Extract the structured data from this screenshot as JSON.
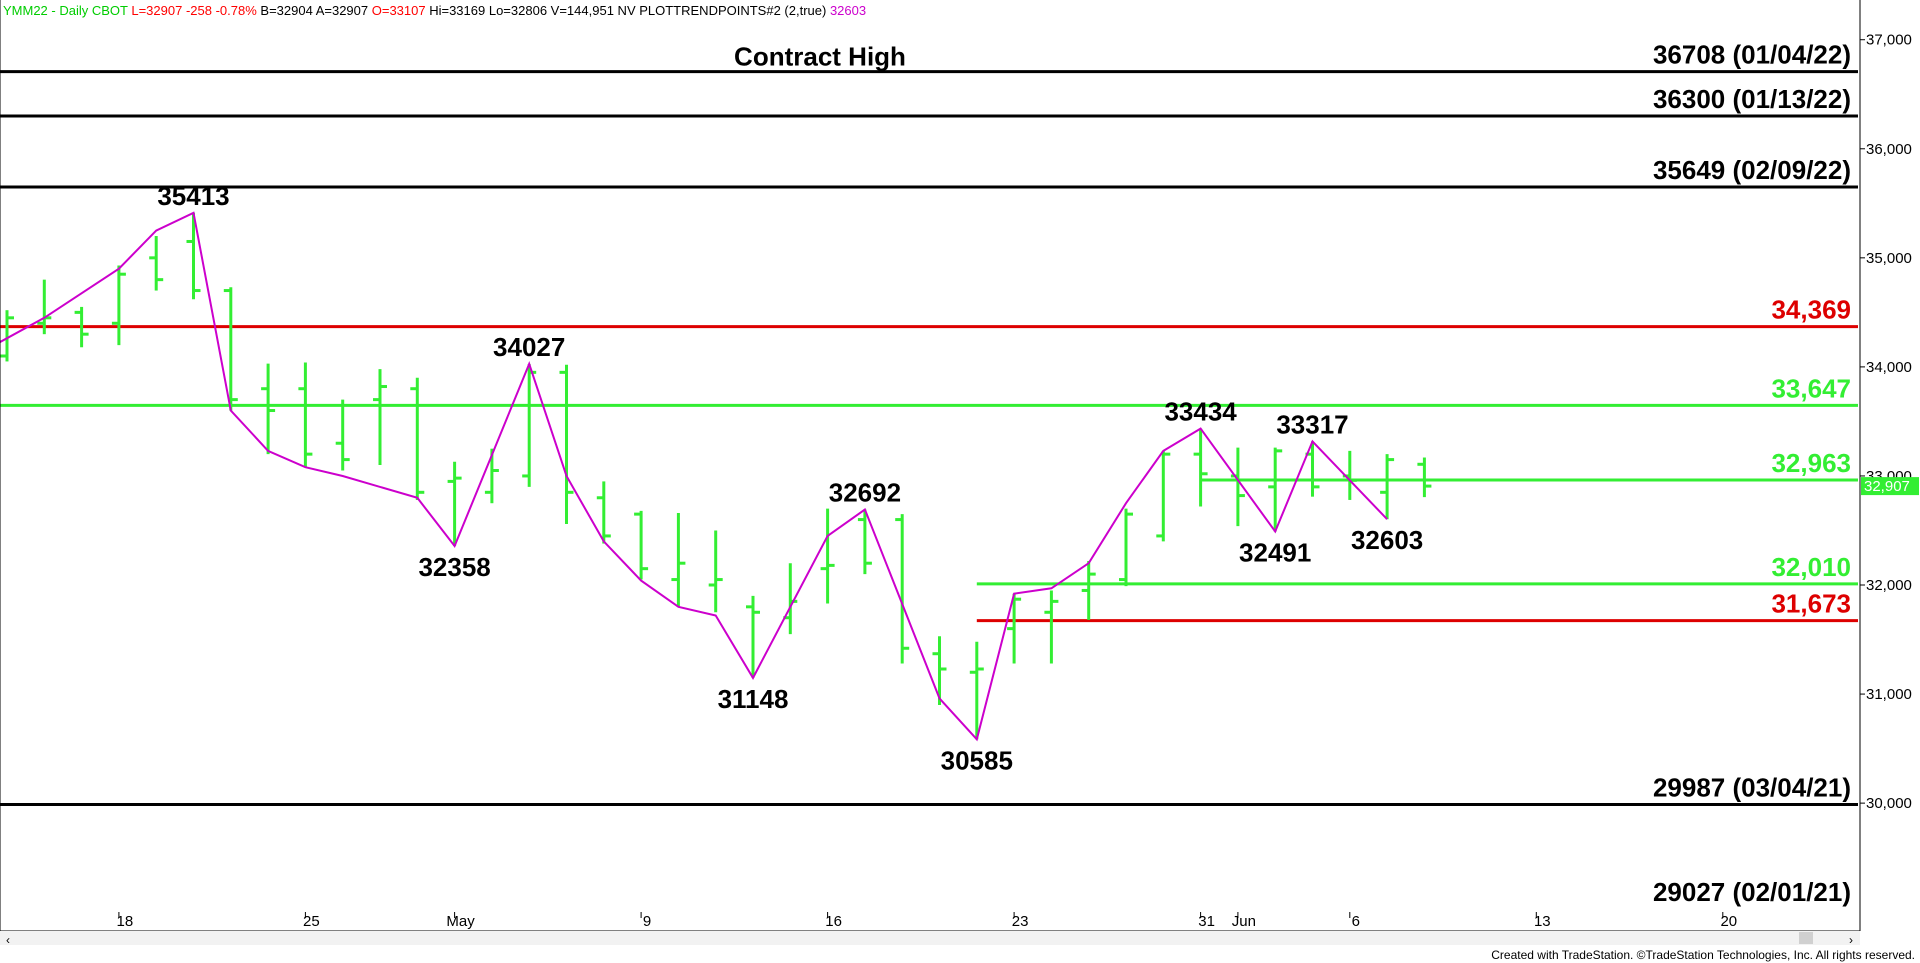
{
  "header": {
    "parts": [
      {
        "text": "YMM22 - Daily  CBOT",
        "color": "#00cc00"
      },
      {
        "text": "L=32907",
        "color": "#ff0000"
      },
      {
        "text": "-258",
        "color": "#ff0000"
      },
      {
        "text": "-0.78%",
        "color": "#ff0000"
      },
      {
        "text": "B=32904",
        "color": "#000000"
      },
      {
        "text": "A=32907",
        "color": "#000000"
      },
      {
        "text": "O=33107",
        "color": "#ff0000"
      },
      {
        "text": "Hi=33169",
        "color": "#000000"
      },
      {
        "text": "Lo=32806",
        "color": "#000000"
      },
      {
        "text": "V=144,951",
        "color": "#000000"
      },
      {
        "text": "NV",
        "color": "#000000"
      },
      {
        "text": "PLOTTRENDPOINTS#2 (2,true)",
        "color": "#000000"
      },
      {
        "text": "32603",
        "color": "#cc00cc"
      }
    ]
  },
  "footer": {
    "credit": "Created with TradeStation. ©TradeStation Technologies, Inc. All rights reserved.",
    "scroll_left": "‹",
    "scroll_right": "›"
  },
  "colors": {
    "bars": "#33ee33",
    "trend": "#cc00cc",
    "black_level": "#000000",
    "red_level": "#dd0000",
    "green_level": "#33ee33",
    "last_price_bg": "#33ee33"
  },
  "chart_data": {
    "type": "bar",
    "subtype": "ohlc-daily",
    "ylim": [
      28800,
      37300
    ],
    "y_ticks": [
      30000,
      31000,
      32000,
      33000,
      34000,
      35000,
      36000,
      37000
    ],
    "y_tick_labels": [
      "30,000",
      "31,000",
      "32,000",
      "33,000",
      "34,000",
      "35,000",
      "36,000",
      "37,000"
    ],
    "x_ticks": [
      {
        "i": 3,
        "label": "18"
      },
      {
        "i": 8,
        "label": "25"
      },
      {
        "i": 12,
        "label": "May"
      },
      {
        "i": 17,
        "label": "9"
      },
      {
        "i": 22,
        "label": "16"
      },
      {
        "i": 27,
        "label": "23"
      },
      {
        "i": 32,
        "label": "31"
      },
      {
        "i": 33,
        "label": "Jun"
      },
      {
        "i": 36,
        "label": "6"
      },
      {
        "i": 41,
        "label": "13"
      },
      {
        "i": 46,
        "label": "20"
      }
    ],
    "bars": [
      {
        "o": 34100,
        "h": 34520,
        "l": 34050,
        "c": 34450
      },
      {
        "o": 34400,
        "h": 34800,
        "l": 34300,
        "c": 34450
      },
      {
        "o": 34500,
        "h": 34550,
        "l": 34180,
        "c": 34300
      },
      {
        "o": 34400,
        "h": 34930,
        "l": 34200,
        "c": 34850
      },
      {
        "o": 35000,
        "h": 35200,
        "l": 34700,
        "c": 34800
      },
      {
        "o": 35150,
        "h": 35413,
        "l": 34620,
        "c": 34700
      },
      {
        "o": 34700,
        "h": 34730,
        "l": 33600,
        "c": 33700
      },
      {
        "o": 33800,
        "h": 34030,
        "l": 33200,
        "c": 33600
      },
      {
        "o": 33800,
        "h": 34040,
        "l": 33080,
        "c": 33200
      },
      {
        "o": 33300,
        "h": 33700,
        "l": 33050,
        "c": 33150
      },
      {
        "o": 33700,
        "h": 33980,
        "l": 33100,
        "c": 33820
      },
      {
        "o": 33800,
        "h": 33900,
        "l": 32780,
        "c": 32850
      },
      {
        "o": 32950,
        "h": 33130,
        "l": 32358,
        "c": 32980
      },
      {
        "o": 32850,
        "h": 33250,
        "l": 32750,
        "c": 33050
      },
      {
        "o": 33000,
        "h": 34027,
        "l": 32900,
        "c": 33950
      },
      {
        "o": 33950,
        "h": 34020,
        "l": 32560,
        "c": 32850
      },
      {
        "o": 32800,
        "h": 32950,
        "l": 32380,
        "c": 32450
      },
      {
        "o": 32650,
        "h": 32680,
        "l": 32050,
        "c": 32150
      },
      {
        "o": 32050,
        "h": 32660,
        "l": 31800,
        "c": 32200
      },
      {
        "o": 32000,
        "h": 32500,
        "l": 31750,
        "c": 32050
      },
      {
        "o": 31800,
        "h": 31900,
        "l": 31148,
        "c": 31750
      },
      {
        "o": 31700,
        "h": 32200,
        "l": 31550,
        "c": 31850
      },
      {
        "o": 32150,
        "h": 32700,
        "l": 31830,
        "c": 32180
      },
      {
        "o": 32600,
        "h": 32692,
        "l": 32100,
        "c": 32200
      },
      {
        "o": 32600,
        "h": 32650,
        "l": 31280,
        "c": 31420
      },
      {
        "o": 31370,
        "h": 31530,
        "l": 30900,
        "c": 31230
      },
      {
        "o": 31200,
        "h": 31480,
        "l": 30585,
        "c": 31230
      },
      {
        "o": 31600,
        "h": 31920,
        "l": 31280,
        "c": 31870
      },
      {
        "o": 31750,
        "h": 31950,
        "l": 31280,
        "c": 31850
      },
      {
        "o": 31950,
        "h": 32220,
        "l": 31680,
        "c": 32100
      },
      {
        "o": 32050,
        "h": 32700,
        "l": 31990,
        "c": 32650
      },
      {
        "o": 32450,
        "h": 33230,
        "l": 32400,
        "c": 33200
      },
      {
        "o": 33200,
        "h": 33434,
        "l": 32720,
        "c": 33020
      },
      {
        "o": 33000,
        "h": 33260,
        "l": 32540,
        "c": 32820
      },
      {
        "o": 32900,
        "h": 33260,
        "l": 32491,
        "c": 33230
      },
      {
        "o": 33200,
        "h": 33317,
        "l": 32810,
        "c": 32900
      },
      {
        "o": 33000,
        "h": 33230,
        "l": 32780,
        "c": 32960
      },
      {
        "o": 32850,
        "h": 33200,
        "l": 32603,
        "c": 33150
      },
      {
        "o": 33107,
        "h": 33169,
        "l": 32806,
        "c": 32907
      }
    ],
    "trend_points": [
      {
        "i": -0.5,
        "v": 34170
      },
      {
        "i": 1,
        "v": 34450
      },
      {
        "i": 3,
        "v": 34900
      },
      {
        "i": 4,
        "v": 35250
      },
      {
        "i": 5,
        "v": 35413
      },
      {
        "i": 6,
        "v": 33600
      },
      {
        "i": 7,
        "v": 33230
      },
      {
        "i": 8,
        "v": 33080
      },
      {
        "i": 9,
        "v": 33000
      },
      {
        "i": 11,
        "v": 32800
      },
      {
        "i": 12,
        "v": 32358
      },
      {
        "i": 14,
        "v": 34027
      },
      {
        "i": 15,
        "v": 33000
      },
      {
        "i": 16,
        "v": 32400
      },
      {
        "i": 17,
        "v": 32040
      },
      {
        "i": 18,
        "v": 31800
      },
      {
        "i": 19,
        "v": 31720
      },
      {
        "i": 20,
        "v": 31148
      },
      {
        "i": 22,
        "v": 32450
      },
      {
        "i": 23,
        "v": 32692
      },
      {
        "i": 25,
        "v": 30960
      },
      {
        "i": 26,
        "v": 30585
      },
      {
        "i": 27,
        "v": 31920
      },
      {
        "i": 28,
        "v": 31970
      },
      {
        "i": 29,
        "v": 32200
      },
      {
        "i": 30,
        "v": 32750
      },
      {
        "i": 31,
        "v": 33230
      },
      {
        "i": 32,
        "v": 33434
      },
      {
        "i": 34,
        "v": 32491
      },
      {
        "i": 35,
        "v": 33317
      },
      {
        "i": 36,
        "v": 32960
      },
      {
        "i": 37,
        "v": 32603
      }
    ],
    "pivot_labels": [
      {
        "i": 5,
        "v": 35413,
        "text": "35413",
        "pos": "above"
      },
      {
        "i": 12,
        "v": 32358,
        "text": "32358",
        "pos": "below"
      },
      {
        "i": 14,
        "v": 34027,
        "text": "34027",
        "pos": "above"
      },
      {
        "i": 20,
        "v": 31148,
        "text": "31148",
        "pos": "below"
      },
      {
        "i": 23,
        "v": 32692,
        "text": "32692",
        "pos": "above"
      },
      {
        "i": 26,
        "v": 30585,
        "text": "30585",
        "pos": "below"
      },
      {
        "i": 32,
        "v": 33434,
        "text": "33434",
        "pos": "above"
      },
      {
        "i": 34,
        "v": 32491,
        "text": "32491",
        "pos": "below"
      },
      {
        "i": 35,
        "v": 33317,
        "text": "33317",
        "pos": "above"
      },
      {
        "i": 37,
        "v": 32603,
        "text": "32603",
        "pos": "below"
      }
    ],
    "levels": [
      {
        "v": 36708,
        "label": "36708 (01/04/22)",
        "color": "black",
        "from_i": null
      },
      {
        "v": 36300,
        "label": "36300 (01/13/22)",
        "color": "black",
        "from_i": null
      },
      {
        "v": 35649,
        "label": "35649 (02/09/22)",
        "color": "black",
        "from_i": null
      },
      {
        "v": 34369,
        "label": "34,369",
        "color": "red",
        "from_i": null
      },
      {
        "v": 33647,
        "label": "33,647",
        "color": "green",
        "from_i": null
      },
      {
        "v": 32963,
        "label": "32,963",
        "color": "green",
        "from_i": 32
      },
      {
        "v": 32010,
        "label": "32,010",
        "color": "green",
        "from_i": 26
      },
      {
        "v": 31673,
        "label": "31,673",
        "color": "red",
        "from_i": 26
      },
      {
        "v": 29987,
        "label": "29987 (03/04/21)",
        "color": "black",
        "from_i": null
      },
      {
        "v": 29027,
        "label": "29027 (02/01/21)",
        "color": "black",
        "from_i": null,
        "no_line": true
      }
    ],
    "annotations": [
      {
        "text": "Contract High",
        "near_v": 36708
      }
    ],
    "last_price": {
      "v": 32907,
      "label": "32,907"
    }
  }
}
